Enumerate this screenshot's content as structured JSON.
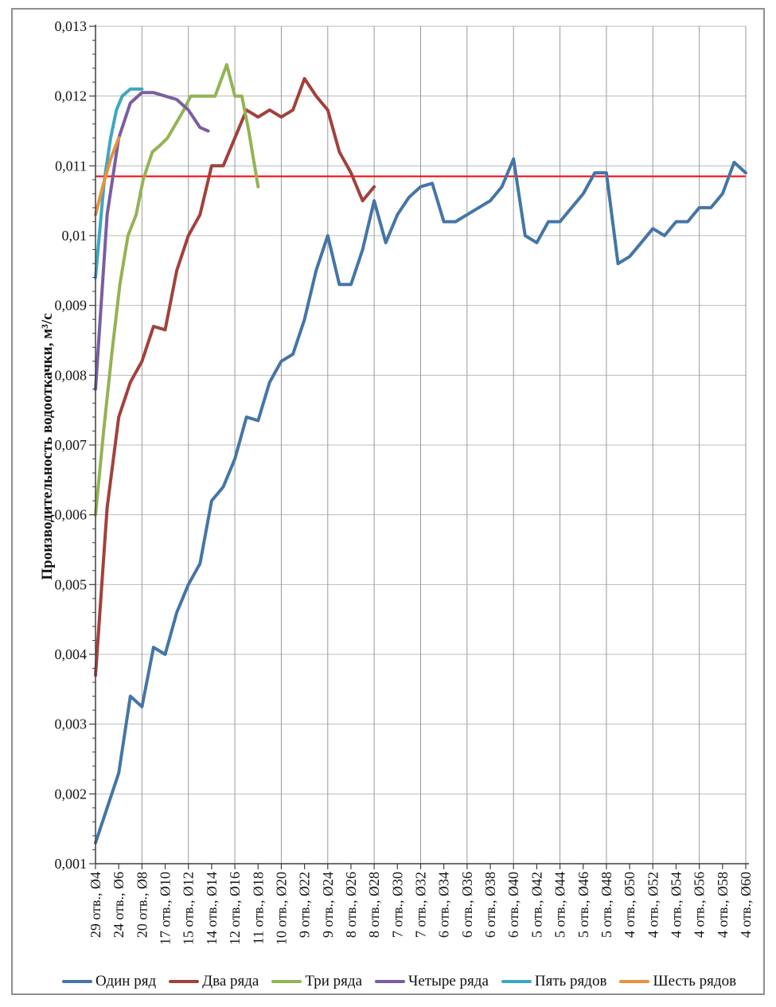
{
  "chart_data": {
    "type": "line",
    "title": "",
    "ylabel": "Производительность водооткачки, м³/с",
    "xlabel": "",
    "grid": true,
    "legend_position": "bottom",
    "y_axis": {
      "min": 0.001,
      "max": 0.013,
      "step": 0.001,
      "tick_labels": [
        "0,013",
        "0,012",
        "0,011",
        "0,01",
        "0,009",
        "0,008",
        "0,007",
        "0,006",
        "0,005",
        "0,004",
        "0,003",
        "0,002",
        "0,001"
      ]
    },
    "x_labels": [
      "29 отв., Ø4",
      "24 отв., Ø6",
      "20 отв., Ø8",
      "17 отв., Ø10",
      "15 отв., Ø12",
      "14 отв., Ø14",
      "12 отв., Ø16",
      "11 отв., Ø18",
      "10 отв., Ø20",
      "9 отв., Ø22",
      "9 отв., Ø24",
      "8 отв., Ø26",
      "8 отв., Ø28",
      "7 отв., Ø30",
      "7 отв., Ø32",
      "6 отв., Ø34",
      "6 отв., Ø36",
      "6 отв., Ø38",
      "6 отв., Ø40",
      "5 отв., Ø42",
      "5 отв., Ø44",
      "5 отв., Ø46",
      "5 отв., Ø48",
      "4 отв., Ø50",
      "4 отв., Ø52",
      "4 отв., Ø54",
      "4 отв., Ø56",
      "4 отв., Ø58",
      "4 отв., Ø60"
    ],
    "reference_line": {
      "value": 0.01085,
      "color": "#FF0000"
    },
    "series": [
      {
        "name": "Один ряд",
        "color": "#4575A7",
        "values": [
          0.0013,
          0.0018,
          0.0023,
          0.0034,
          0.00325,
          0.0041,
          0.004,
          0.0046,
          0.005,
          0.0053,
          0.0062,
          0.0064,
          0.0068,
          0.0074,
          0.00735,
          0.0079,
          0.0082,
          0.0083,
          0.0088,
          0.0095,
          0.01,
          0.0093,
          0.0093,
          0.0098,
          0.0105,
          0.0099,
          0.0103,
          0.01055,
          0.0107,
          0.01075,
          0.0102,
          0.0102,
          0.0103,
          0.0104,
          0.0105,
          0.0107,
          0.0111,
          0.01,
          0.0099,
          0.0102,
          0.0102,
          0.0104,
          0.0106,
          0.0109,
          0.0109,
          0.0096,
          0.0097,
          0.0099,
          0.0101,
          0.01,
          0.0102,
          0.0102,
          0.0104,
          0.0104,
          0.0106,
          0.01105,
          0.0109
        ]
      },
      {
        "name": "Два ряда",
        "color": "#A2413C",
        "values": [
          0.0037,
          0.0061,
          0.0074,
          0.0079,
          0.0082,
          0.0087,
          0.00865,
          0.0095,
          0.01,
          0.0103,
          0.011,
          0.011,
          0.0114,
          0.0118,
          0.0117,
          0.0118,
          0.0117,
          0.0118,
          0.01225,
          0.012,
          0.0118,
          0.0112,
          0.0109,
          0.0105,
          0.0107
        ]
      },
      {
        "name": "Три ряда",
        "color": "#94B354",
        "x": [
          0,
          0.7,
          1.4,
          2.1,
          2.8,
          3.5,
          4.1,
          4.9,
          5.6,
          6.2,
          6.9,
          7.6,
          8.2,
          8.9,
          9.6,
          10.3,
          11.3,
          12.0,
          12.6,
          13.2,
          13.6,
          14.0
        ],
        "values": [
          0.006,
          0.0072,
          0.0083,
          0.0093,
          0.01,
          0.0103,
          0.0108,
          0.0112,
          0.0113,
          0.0114,
          0.0116,
          0.0118,
          0.012,
          0.012,
          0.012,
          0.012,
          0.01245,
          0.012,
          0.012,
          0.0115,
          0.0111,
          0.0107
        ]
      },
      {
        "name": "Четыре ряда",
        "color": "#7A5EA0",
        "x": [
          0,
          1,
          2,
          3,
          4,
          5,
          6,
          7,
          8,
          9,
          9.7
        ],
        "values": [
          0.0078,
          0.0103,
          0.0114,
          0.0119,
          0.01205,
          0.01205,
          0.012,
          0.01195,
          0.0118,
          0.01155,
          0.0115
        ]
      },
      {
        "name": "Пять рядов",
        "color": "#3BA7C4",
        "x": [
          0,
          0.76,
          1.3,
          1.8,
          2.3,
          3.0,
          4.0
        ],
        "values": [
          0.0094,
          0.0108,
          0.0114,
          0.0118,
          0.012,
          0.0121,
          0.0121
        ]
      },
      {
        "name": "Шесть рядов",
        "color": "#E9913E",
        "x": [
          0,
          0.62,
          1.3,
          2.0
        ],
        "values": [
          0.0103,
          0.0107,
          0.0111,
          0.0114
        ]
      }
    ]
  }
}
